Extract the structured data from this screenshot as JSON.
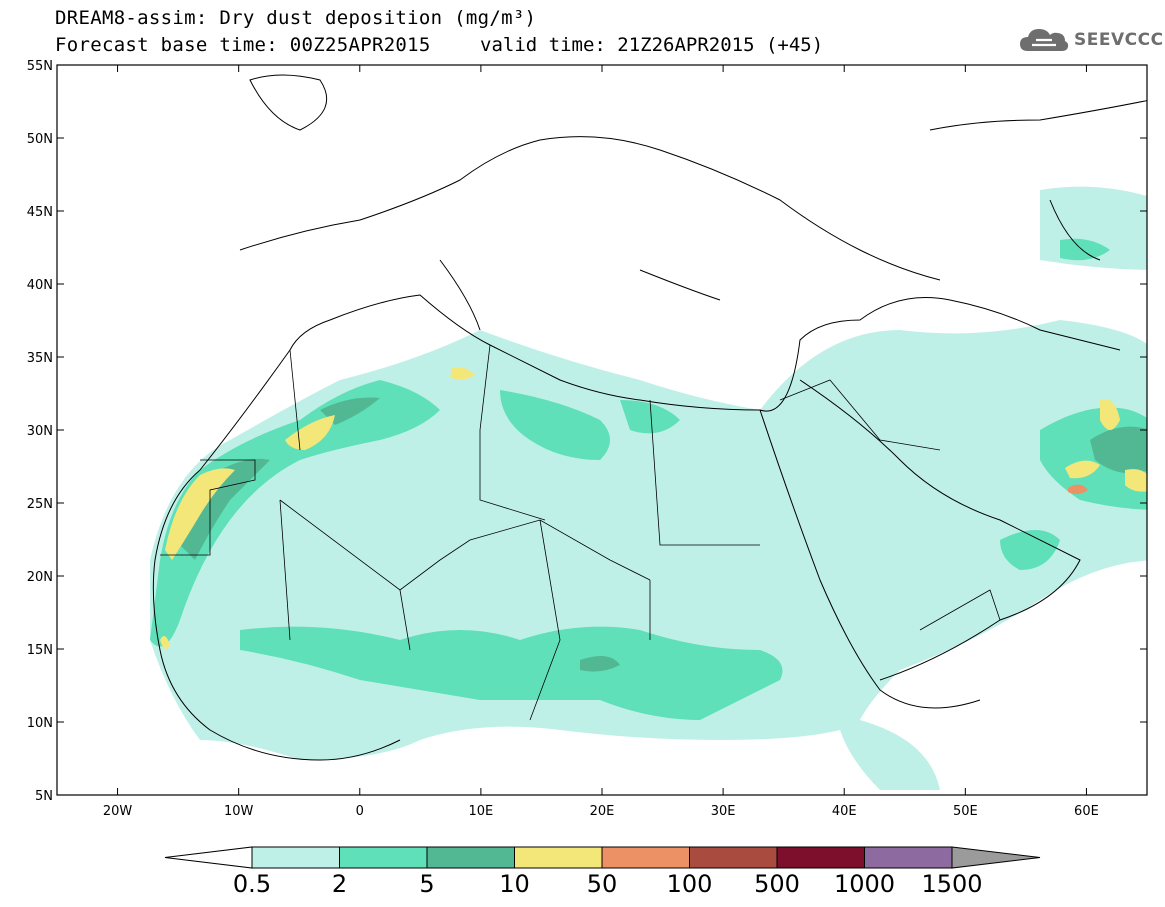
{
  "title": {
    "line1": "DREAM8-assim: Dry dust deposition (mg/m³)",
    "base_time": "Forecast base time: 00Z25APR2015",
    "valid_time": "valid time: 21Z26APR2015 (+45)"
  },
  "logo": {
    "text": "SEEVCCC",
    "icon": "cloud-icon"
  },
  "map": {
    "lon_range": [
      -25,
      65
    ],
    "lat_range": [
      5,
      55
    ],
    "lat_ticks": [
      "5N",
      "10N",
      "15N",
      "20N",
      "25N",
      "30N",
      "35N",
      "40N",
      "45N",
      "50N",
      "55N"
    ],
    "lon_ticks": [
      "20W",
      "10W",
      "0",
      "10E",
      "20E",
      "30E",
      "40E",
      "50E",
      "60E"
    ]
  },
  "legend": {
    "thresholds": [
      "0.5",
      "2",
      "5",
      "10",
      "50",
      "100",
      "500",
      "1000",
      "1500"
    ],
    "colors": [
      "#bff0e8",
      "#5fe0b8",
      "#52b894",
      "#f4e77a",
      "#ec9065",
      "#a94b3e",
      "#7d0f2c",
      "#8d6aa0",
      "#9b9b9b"
    ],
    "under_color": "#ffffff"
  },
  "chart_data": {
    "type": "heatmap",
    "title": "DREAM8-assim: Dry dust deposition (mg/m³)",
    "xlim": [
      -25,
      65
    ],
    "ylim": [
      5,
      55
    ],
    "xticks": [
      "20W",
      "10W",
      "0",
      "10E",
      "20E",
      "30E",
      "40E",
      "50E",
      "60E"
    ],
    "yticks": [
      "5N",
      "10N",
      "15N",
      "20N",
      "25N",
      "30N",
      "35N",
      "40N",
      "45N",
      "50N",
      "55N"
    ],
    "levels": [
      0.5,
      2,
      5,
      10,
      50,
      100,
      500,
      1000,
      1500
    ]
  }
}
